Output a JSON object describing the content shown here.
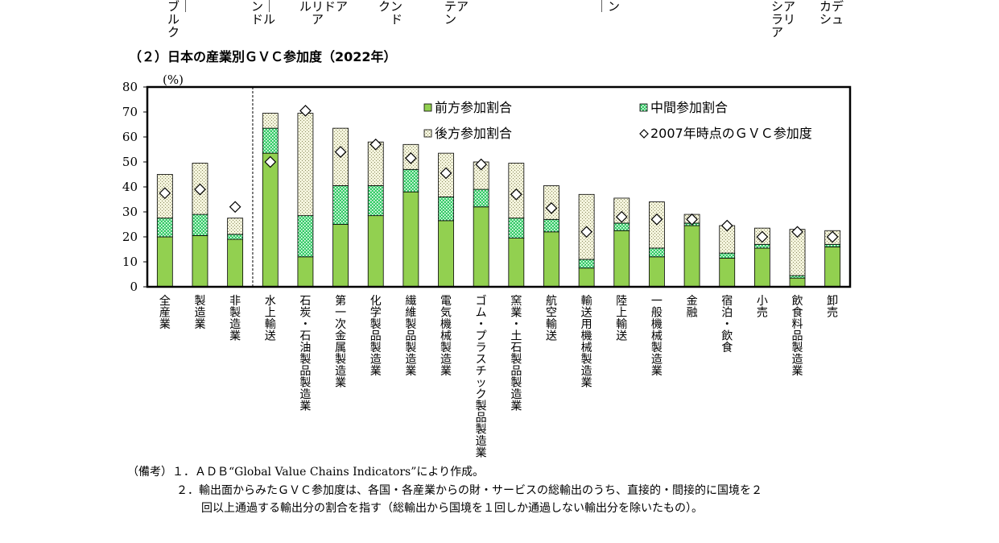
{
  "top_fragments": [
    {
      "lines": [
        "ブ｜",
        "ル",
        "ク"
      ]
    },
    {
      "lines": [
        "ン｜",
        "ドル"
      ]
    },
    {
      "lines": [
        "ルリドア",
        "　ア"
      ]
    },
    {
      "lines": [
        "クン",
        "　ド"
      ]
    },
    {
      "lines": [
        "テア",
        "ン"
      ]
    },
    {
      "lines": [
        "｜ン"
      ]
    },
    {
      "lines": [
        "シア",
        "ラリ",
        "ア"
      ]
    },
    {
      "lines": [
        "カデ",
        "シュ"
      ]
    }
  ],
  "chart_data": {
    "type": "bar",
    "title": "（２）日本の産業別ＧＶＣ参加度（2022年）",
    "ylabel": "(%)",
    "ylim": [
      0,
      80
    ],
    "yticks": [
      "0",
      "10",
      "20",
      "30",
      "40",
      "50",
      "60",
      "70",
      "80"
    ],
    "categories": [
      "全産業",
      "製造業",
      "非製造業",
      "水上輸送",
      "石炭・石油製品製造業",
      "第一次金属製造業",
      "化学製品製造業",
      "繊維製品製造業",
      "電気機械製造業",
      "ゴム・プラスチック製品製造業",
      "窯業・土石製品製造業",
      "航空輸送",
      "輸送用機械製造業",
      "陸上輸送",
      "一般機械製造業",
      "金融",
      "宿泊・飲食",
      "小売",
      "飲食料品製造業",
      "卸売"
    ],
    "series": [
      {
        "name": "前方参加割合",
        "color": "#92d050",
        "values": [
          20,
          20.5,
          19,
          53.5,
          12,
          25,
          28.5,
          38,
          26.5,
          32,
          19.5,
          22,
          7.5,
          22.5,
          12,
          24.5,
          11.5,
          15.5,
          3.5,
          16
        ]
      },
      {
        "name": "中間参加割合",
        "color": "#33cc66",
        "values": [
          7.5,
          8.5,
          2,
          10,
          16.5,
          15.5,
          12,
          9,
          9.5,
          7,
          8,
          5,
          3.5,
          3,
          3.5,
          1,
          2,
          1.5,
          1,
          1
        ]
      },
      {
        "name": "後方参加割合",
        "color": "#f3f3dc",
        "values": [
          17.5,
          20.5,
          6.5,
          6,
          41,
          23,
          17.5,
          10,
          17.5,
          11,
          22,
          13.5,
          26,
          10,
          18.5,
          3.5,
          11,
          6.5,
          18.5,
          5.5
        ]
      }
    ],
    "markers": {
      "name": "2007年時点のＧＶＣ参加度",
      "values": [
        37.5,
        39,
        32,
        50,
        70.5,
        54,
        57,
        51.5,
        45.5,
        49,
        37,
        31.5,
        22,
        28,
        27,
        27,
        24.5,
        20,
        22,
        20
      ]
    },
    "legend": "top-right",
    "grid": false
  },
  "notes": {
    "line1": "（備考）１．ＡＤＢ“Global Value Chains Indicators”により作成。",
    "line2": "２．輸出面からみたＧＶＣ参加度は、各国・各産業からの財・サービスの総輸出のうち、直接的・間接的に国境を２",
    "line3": "回以上通過する輸出分の割合を指す（総輸出から国境を１回しか通過しない輸出分を除いたもの）。"
  }
}
